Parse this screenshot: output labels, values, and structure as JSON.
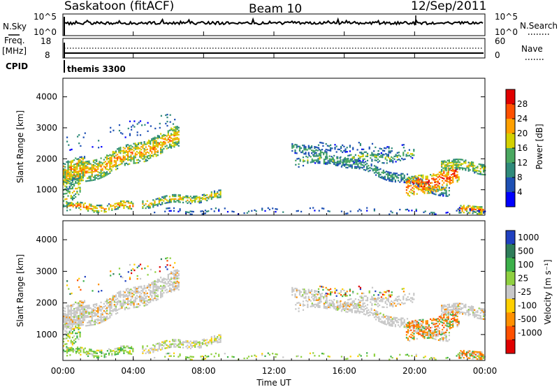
{
  "header": {
    "station": "Saskatoon (fitACF)",
    "beam": "Beam 10",
    "date": "12/Sep/2011"
  },
  "top_panel": {
    "left_label": "N.Sky",
    "left_ticks": [
      "10^5",
      "10^0"
    ],
    "right_label": "N.Search",
    "right_ticks": [
      "10^5",
      "10^0"
    ]
  },
  "freq_panel": {
    "left_label_1": "Freq.",
    "left_label_2": "[MHz]",
    "left_ticks": [
      "18",
      "8"
    ],
    "right_label": "Nave",
    "right_ticks": [
      "60",
      "0"
    ]
  },
  "cpid_panel": {
    "label": "CPID",
    "mode": "themis 3300"
  },
  "chart_data": [
    {
      "type": "heatmap",
      "quantity": "Power",
      "ylabel": "Slant Range [km]",
      "ylim": [
        180,
        4600
      ],
      "yticks": [
        "1000",
        "2000",
        "3000",
        "4000"
      ],
      "colorbar_label": "Power [dB]",
      "colorbar_ticks": [
        "28",
        "24",
        "20",
        "16",
        "12",
        "8",
        "4"
      ],
      "colorbar_range": [
        0,
        32
      ],
      "colors": [
        "#0000ff",
        "#1e50b4",
        "#2f8a7a",
        "#4aa860",
        "#d4d000",
        "#ffa000",
        "#ff5000",
        "#e00000"
      ]
    },
    {
      "type": "heatmap",
      "quantity": "Velocity",
      "ylabel": "Slant Range [km]",
      "ylim": [
        180,
        4600
      ],
      "yticks": [
        "1000",
        "2000",
        "3000",
        "4000"
      ],
      "colorbar_label": "Velocity [m s⁻¹]",
      "colorbar_ticks": [
        "1000",
        "500",
        "100",
        "25",
        "-25",
        "-100",
        "-500",
        "-1000"
      ],
      "colors": [
        "#2040c0",
        "#2e7d5a",
        "#3cb04a",
        "#8fd040",
        "#c8c8c8",
        "#ffd000",
        "#ff9000",
        "#ff5000",
        "#e00000"
      ]
    }
  ],
  "x_axis": {
    "xlabel": "Time UT",
    "ticks": [
      "00:00",
      "04:00",
      "08:00",
      "12:00",
      "16:00",
      "20:00",
      "00:00"
    ],
    "range_hours": [
      0,
      24
    ]
  }
}
